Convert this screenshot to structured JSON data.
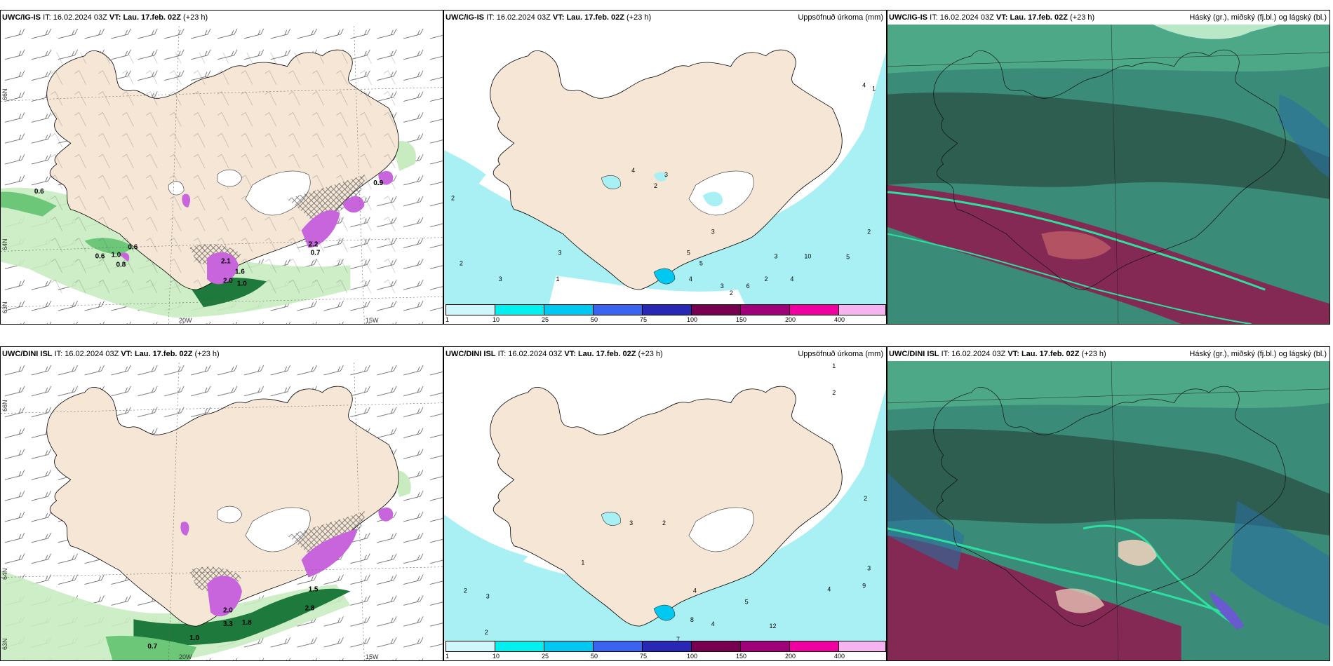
{
  "rows": [
    {
      "model": "UWC/IG-IS",
      "it_label": "IT:",
      "it_value": "16.02.2024 03Z",
      "vt_label": "VT:",
      "vt_value": "Lau. 17.feb. 02Z",
      "offset": "(+23 h)"
    },
    {
      "model": "UWC/DINI ISL",
      "it_label": "IT:",
      "it_value": "16.02.2024 03Z",
      "vt_label": "VT:",
      "vt_value": "Lau. 17.feb. 02Z",
      "offset": "(+23 h)"
    }
  ],
  "panel_titles": {
    "precip": "Uppsöfnuð úrkoma (mm)",
    "cloud": "Háský (gr.), miðský (fj.bl.) og lágský (bl.)"
  },
  "grid_labels": {
    "lat_66": "66N",
    "lat_64": "64N",
    "lat_63": "63N",
    "lon_20": "20W",
    "lon_15": "15W"
  },
  "colorbar": {
    "ticks": [
      "1",
      "10",
      "25",
      "50",
      "75",
      "100",
      "150",
      "200",
      "400"
    ],
    "colors": [
      "#cff7fb",
      "#00f0f0",
      "#00c8f0",
      "#3a64f0",
      "#2828b4",
      "#780050",
      "#a0007a",
      "#f000a0",
      "#f5b4f0"
    ]
  },
  "top_left_values": [
    "0.6",
    "0.6",
    "1.0",
    "0.6",
    "0.8",
    "2.1",
    "1.6",
    "2.0",
    "1.0",
    "2.2",
    "0.7",
    "0.9"
  ],
  "bottom_left_values": [
    "0.7",
    "1.0",
    "1.8",
    "2.0",
    "3.3",
    "1.5",
    "2.8"
  ],
  "top_mid_values": [
    "4",
    "3",
    "2",
    "2",
    "2",
    "3",
    "1",
    "3",
    "3",
    "5",
    "5",
    "4",
    "3",
    "2",
    "2",
    "4",
    "6",
    "3",
    "10",
    "5",
    "2",
    "4",
    "1"
  ],
  "bottom_mid_values": [
    "3",
    "2",
    "1",
    "2",
    "2",
    "3",
    "4",
    "8",
    "4",
    "5",
    "12",
    "4",
    "3",
    "2",
    "9",
    "2",
    "7",
    "1"
  ],
  "colors": {
    "land": "#f5e6d6",
    "sea": "#ffffff",
    "cyan_light": "#a8f0f4",
    "green_light": "#c8ecc0",
    "green_mid": "#6cc878",
    "green_dark": "#1e7a3c",
    "magenta": "#c864dc",
    "cloud_teal": "#3a8c78",
    "cloud_dark": "#2d5e50",
    "cloud_red": "#8c1e50"
  }
}
